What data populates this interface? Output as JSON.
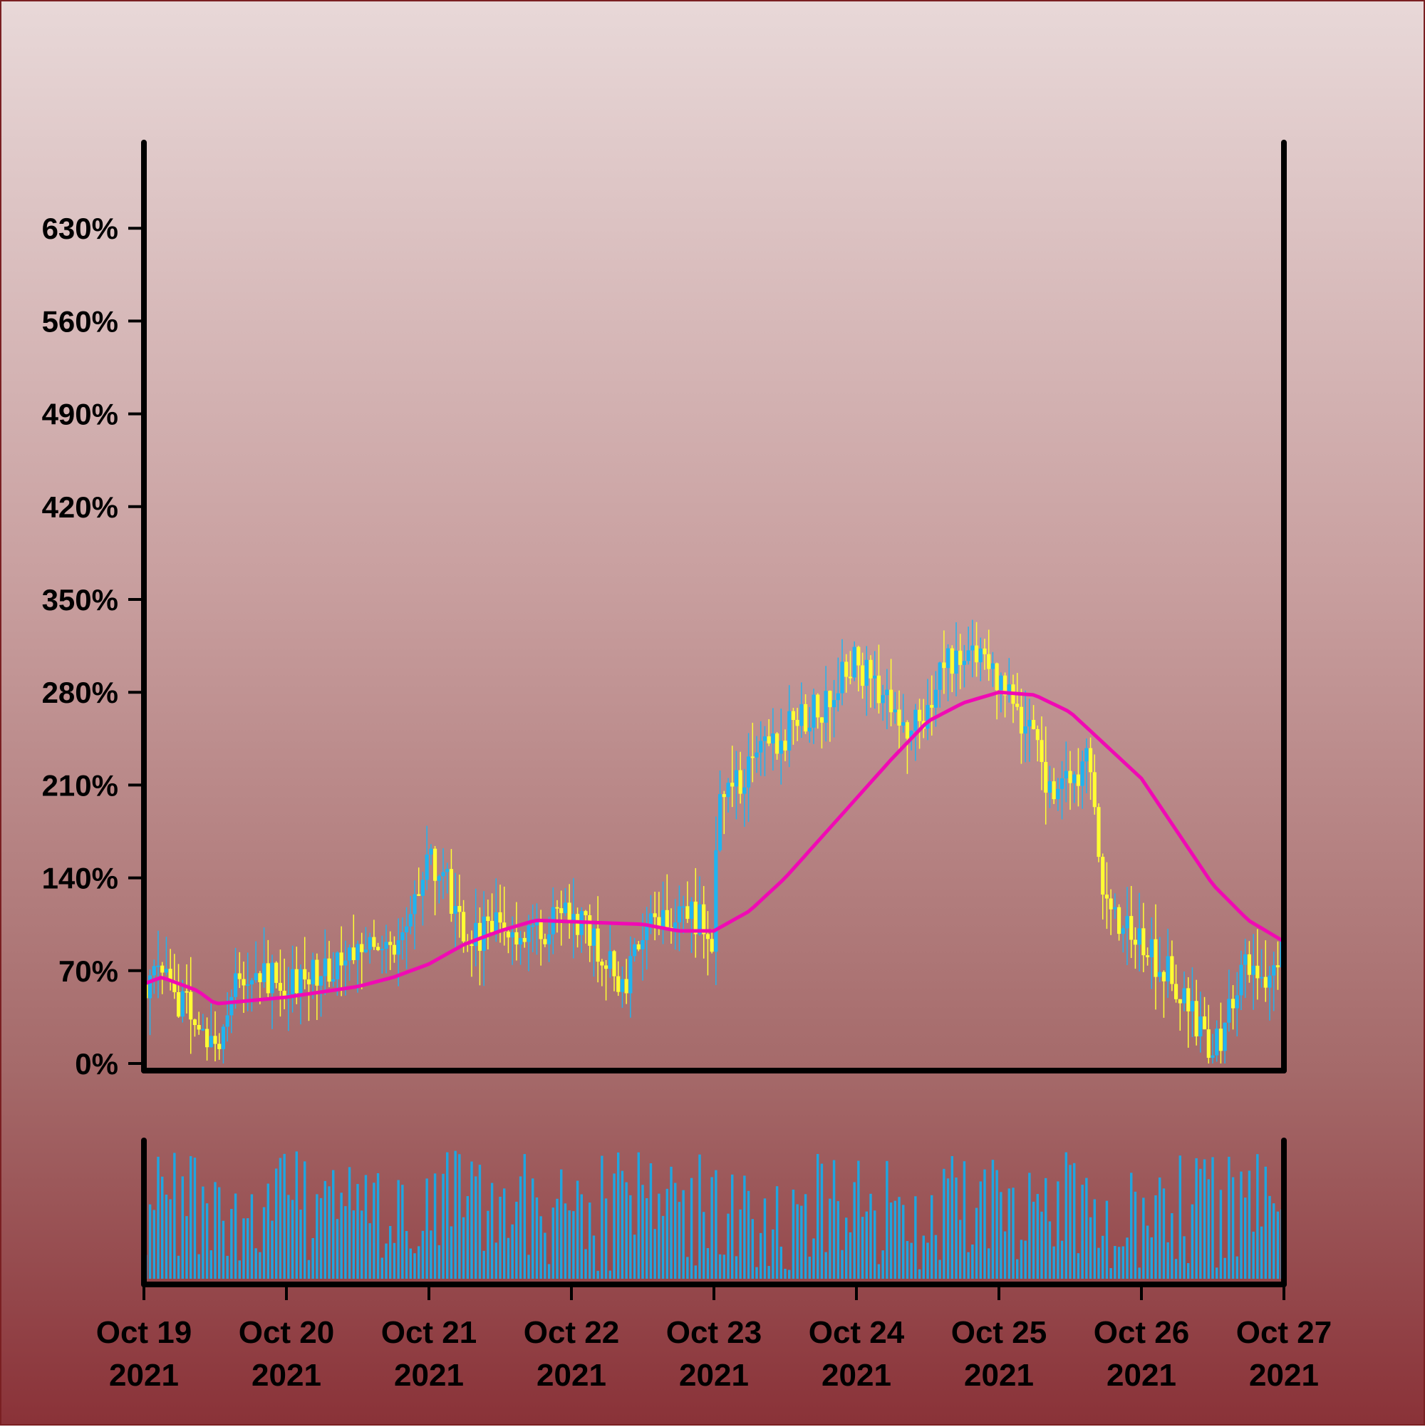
{
  "chart_data": {
    "type": "candlestick",
    "colors": {
      "rising": "#1fb4f0",
      "falling": "#ffff33",
      "moving_average": "#f00ab4",
      "volume": "#1fa6e0",
      "axis": "#000000"
    },
    "price_axis": {
      "ylim": [
        0,
        700
      ],
      "unit": "%",
      "ticks": [
        0,
        70,
        140,
        210,
        280,
        350,
        420,
        490,
        560,
        630
      ],
      "tick_labels": [
        "0%",
        "70%",
        "140%",
        "210%",
        "280%",
        "350%",
        "420%",
        "490%",
        "560%",
        "630%"
      ]
    },
    "x_axis": {
      "range": [
        "2021-10-19",
        "2021-10-27"
      ],
      "ticks": [
        "2021-10-19",
        "2021-10-20",
        "2021-10-21",
        "2021-10-22",
        "2021-10-23",
        "2021-10-24",
        "2021-10-25",
        "2021-10-26",
        "2021-10-27"
      ],
      "tick_labels": [
        [
          "Oct 19",
          "2021"
        ],
        [
          "Oct 20",
          "2021"
        ],
        [
          "Oct 21",
          "2021"
        ],
        [
          "Oct 22",
          "2021"
        ],
        [
          "Oct 23",
          "2021"
        ],
        [
          "Oct 24",
          "2021"
        ],
        [
          "Oct 25",
          "2021"
        ],
        [
          "Oct 26",
          "2021"
        ],
        [
          "Oct 27",
          "2021"
        ]
      ]
    },
    "close_anchors": [
      [
        "2021-10-19T00:00",
        60
      ],
      [
        "2021-10-19T03:00",
        72
      ],
      [
        "2021-10-19T06:00",
        48
      ],
      [
        "2021-10-19T09:00",
        35
      ],
      [
        "2021-10-19T12:00",
        2
      ],
      [
        "2021-10-19T15:00",
        65
      ],
      [
        "2021-10-20T00:00",
        62
      ],
      [
        "2021-10-20T06:00",
        70
      ],
      [
        "2021-10-20T12:00",
        85
      ],
      [
        "2021-10-20T15:00",
        100
      ],
      [
        "2021-10-20T18:00",
        90
      ],
      [
        "2021-10-20T21:00",
        105
      ],
      [
        "2021-10-21T00:00",
        150
      ],
      [
        "2021-10-21T03:00",
        135
      ],
      [
        "2021-10-21T06:00",
        90
      ],
      [
        "2021-10-21T12:00",
        110
      ],
      [
        "2021-10-21T18:00",
        95
      ],
      [
        "2021-10-22T00:00",
        115
      ],
      [
        "2021-10-22T06:00",
        75
      ],
      [
        "2021-10-22T09:00",
        60
      ],
      [
        "2021-10-22T12:00",
        90
      ],
      [
        "2021-10-22T15:00",
        115
      ],
      [
        "2021-10-22T21:00",
        110
      ],
      [
        "2021-10-23T00:00",
        95
      ],
      [
        "2021-10-23T00:30",
        190
      ],
      [
        "2021-10-23T06:00",
        220
      ],
      [
        "2021-10-23T12:00",
        250
      ],
      [
        "2021-10-23T18:00",
        270
      ],
      [
        "2021-10-24T00:00",
        305
      ],
      [
        "2021-10-24T03:00",
        285
      ],
      [
        "2021-10-24T09:00",
        245
      ],
      [
        "2021-10-24T15:00",
        300
      ],
      [
        "2021-10-24T18:00",
        310
      ],
      [
        "2021-10-25T00:00",
        290
      ],
      [
        "2021-10-25T06:00",
        240
      ],
      [
        "2021-10-25T09:00",
        200
      ],
      [
        "2021-10-25T15:00",
        230
      ],
      [
        "2021-10-25T18:00",
        115
      ],
      [
        "2021-10-26T00:00",
        90
      ],
      [
        "2021-10-26T06:00",
        60
      ],
      [
        "2021-10-26T12:00",
        5
      ],
      [
        "2021-10-26T15:00",
        40
      ],
      [
        "2021-10-26T18:00",
        75
      ],
      [
        "2021-10-26T21:00",
        70
      ],
      [
        "2021-10-27T00:00",
        90
      ]
    ],
    "moving_average": [
      [
        "2021-10-19T00:00",
        60
      ],
      [
        "2021-10-19T03:00",
        65
      ],
      [
        "2021-10-19T09:00",
        55
      ],
      [
        "2021-10-19T12:00",
        45
      ],
      [
        "2021-10-20T00:00",
        50
      ],
      [
        "2021-10-20T12:00",
        58
      ],
      [
        "2021-10-20T18:00",
        65
      ],
      [
        "2021-10-21T00:00",
        75
      ],
      [
        "2021-10-21T06:00",
        90
      ],
      [
        "2021-10-21T12:00",
        100
      ],
      [
        "2021-10-21T18:00",
        108
      ],
      [
        "2021-10-22T00:00",
        107
      ],
      [
        "2021-10-22T12:00",
        105
      ],
      [
        "2021-10-22T18:00",
        100
      ],
      [
        "2021-10-23T00:00",
        100
      ],
      [
        "2021-10-23T06:00",
        115
      ],
      [
        "2021-10-23T12:00",
        140
      ],
      [
        "2021-10-23T18:00",
        170
      ],
      [
        "2021-10-24T00:00",
        200
      ],
      [
        "2021-10-24T06:00",
        230
      ],
      [
        "2021-10-24T12:00",
        258
      ],
      [
        "2021-10-24T18:00",
        272
      ],
      [
        "2021-10-25T00:00",
        280
      ],
      [
        "2021-10-25T06:00",
        278
      ],
      [
        "2021-10-25T12:00",
        265
      ],
      [
        "2021-10-25T18:00",
        240
      ],
      [
        "2021-10-26T00:00",
        215
      ],
      [
        "2021-10-26T06:00",
        175
      ],
      [
        "2021-10-26T12:00",
        135
      ],
      [
        "2021-10-26T18:00",
        108
      ],
      [
        "2021-10-27T00:00",
        92
      ]
    ],
    "candle_count": 280,
    "volume_panel": {
      "axis_labels": "none"
    }
  }
}
